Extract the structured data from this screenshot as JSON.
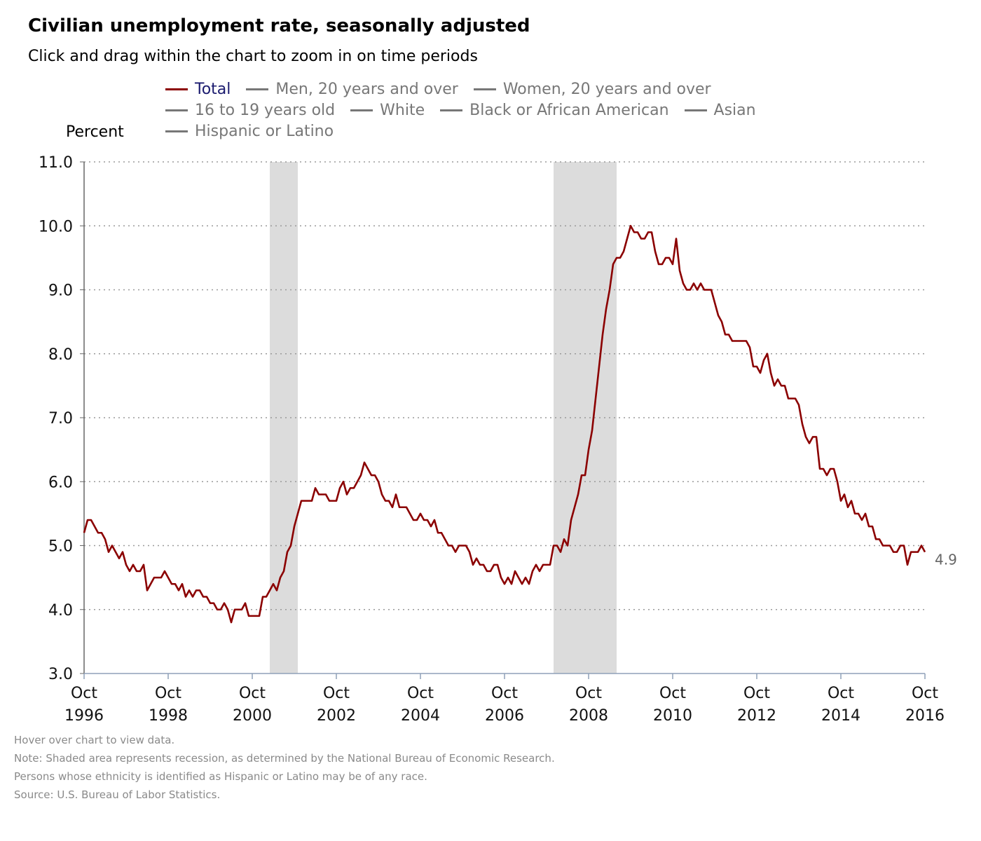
{
  "title": "Civilian unemployment rate, seasonally adjusted",
  "subtitle": "Click and drag within the chart to zoom in on time periods",
  "legend": {
    "rows": [
      [
        {
          "label": "Total",
          "active": true
        },
        {
          "label": "Men, 20 years and over",
          "active": false
        },
        {
          "label": "Women, 20 years and over",
          "active": false
        }
      ],
      [
        {
          "label": "16 to 19 years old",
          "active": false
        },
        {
          "label": "White",
          "active": false
        },
        {
          "label": "Black or African American",
          "active": false
        },
        {
          "label": "Asian",
          "active": false
        }
      ],
      [
        {
          "label": "Hispanic or Latino",
          "active": false
        }
      ]
    ]
  },
  "notes": {
    "hover": "Hover over chart to view data.",
    "recession": "Note: Shaded area represents recession, as determined by the National Bureau of Economic Research.",
    "hispanic": "Persons whose ethnicity is identified as Hispanic or Latino may be of any race.",
    "source": "Source: U.S. Bureau of Labor Statistics."
  },
  "chart_data": {
    "type": "line",
    "title": "Civilian unemployment rate, seasonally adjusted",
    "ylabel": "Percent",
    "xlabel": "",
    "ylim": [
      3.0,
      11.0
    ],
    "yticks": [
      "3.0",
      "4.0",
      "5.0",
      "6.0",
      "7.0",
      "8.0",
      "9.0",
      "10.0",
      "11.0"
    ],
    "x_start": "1996-10",
    "x_end": "2016-10",
    "xticks": [
      {
        "month": "Oct",
        "year": "1996"
      },
      {
        "month": "Oct",
        "year": "1998"
      },
      {
        "month": "Oct",
        "year": "2000"
      },
      {
        "month": "Oct",
        "year": "2002"
      },
      {
        "month": "Oct",
        "year": "2004"
      },
      {
        "month": "Oct",
        "year": "2006"
      },
      {
        "month": "Oct",
        "year": "2008"
      },
      {
        "month": "Oct",
        "year": "2010"
      },
      {
        "month": "Oct",
        "year": "2012"
      },
      {
        "month": "Oct",
        "year": "2014"
      },
      {
        "month": "Oct",
        "year": "2016"
      }
    ],
    "grid": "horizontal-dotted",
    "recessions": [
      {
        "start": "2001-03",
        "end": "2001-11"
      },
      {
        "start": "2007-12",
        "end": "2009-06"
      }
    ],
    "series": [
      {
        "name": "Total",
        "color": "#8b0000",
        "last_label": "4.9",
        "points": [
          [
            "1996-10",
            5.2
          ],
          [
            "1996-11",
            5.4
          ],
          [
            "1996-12",
            5.4
          ],
          [
            "1997-01",
            5.3
          ],
          [
            "1997-02",
            5.2
          ],
          [
            "1997-03",
            5.2
          ],
          [
            "1997-04",
            5.1
          ],
          [
            "1997-05",
            4.9
          ],
          [
            "1997-06",
            5.0
          ],
          [
            "1997-07",
            4.9
          ],
          [
            "1997-08",
            4.8
          ],
          [
            "1997-09",
            4.9
          ],
          [
            "1997-10",
            4.7
          ],
          [
            "1997-11",
            4.6
          ],
          [
            "1997-12",
            4.7
          ],
          [
            "1998-01",
            4.6
          ],
          [
            "1998-02",
            4.6
          ],
          [
            "1998-03",
            4.7
          ],
          [
            "1998-04",
            4.3
          ],
          [
            "1998-05",
            4.4
          ],
          [
            "1998-06",
            4.5
          ],
          [
            "1998-07",
            4.5
          ],
          [
            "1998-08",
            4.5
          ],
          [
            "1998-09",
            4.6
          ],
          [
            "1998-10",
            4.5
          ],
          [
            "1998-11",
            4.4
          ],
          [
            "1998-12",
            4.4
          ],
          [
            "1999-01",
            4.3
          ],
          [
            "1999-02",
            4.4
          ],
          [
            "1999-03",
            4.2
          ],
          [
            "1999-04",
            4.3
          ],
          [
            "1999-05",
            4.2
          ],
          [
            "1999-06",
            4.3
          ],
          [
            "1999-07",
            4.3
          ],
          [
            "1999-08",
            4.2
          ],
          [
            "1999-09",
            4.2
          ],
          [
            "1999-10",
            4.1
          ],
          [
            "1999-11",
            4.1
          ],
          [
            "1999-12",
            4.0
          ],
          [
            "2000-01",
            4.0
          ],
          [
            "2000-02",
            4.1
          ],
          [
            "2000-03",
            4.0
          ],
          [
            "2000-04",
            3.8
          ],
          [
            "2000-05",
            4.0
          ],
          [
            "2000-06",
            4.0
          ],
          [
            "2000-07",
            4.0
          ],
          [
            "2000-08",
            4.1
          ],
          [
            "2000-09",
            3.9
          ],
          [
            "2000-10",
            3.9
          ],
          [
            "2000-11",
            3.9
          ],
          [
            "2000-12",
            3.9
          ],
          [
            "2001-01",
            4.2
          ],
          [
            "2001-02",
            4.2
          ],
          [
            "2001-03",
            4.3
          ],
          [
            "2001-04",
            4.4
          ],
          [
            "2001-05",
            4.3
          ],
          [
            "2001-06",
            4.5
          ],
          [
            "2001-07",
            4.6
          ],
          [
            "2001-08",
            4.9
          ],
          [
            "2001-09",
            5.0
          ],
          [
            "2001-10",
            5.3
          ],
          [
            "2001-11",
            5.5
          ],
          [
            "2001-12",
            5.7
          ],
          [
            "2002-01",
            5.7
          ],
          [
            "2002-02",
            5.7
          ],
          [
            "2002-03",
            5.7
          ],
          [
            "2002-04",
            5.9
          ],
          [
            "2002-05",
            5.8
          ],
          [
            "2002-06",
            5.8
          ],
          [
            "2002-07",
            5.8
          ],
          [
            "2002-08",
            5.7
          ],
          [
            "2002-09",
            5.7
          ],
          [
            "2002-10",
            5.7
          ],
          [
            "2002-11",
            5.9
          ],
          [
            "2002-12",
            6.0
          ],
          [
            "2003-01",
            5.8
          ],
          [
            "2003-02",
            5.9
          ],
          [
            "2003-03",
            5.9
          ],
          [
            "2003-04",
            6.0
          ],
          [
            "2003-05",
            6.1
          ],
          [
            "2003-06",
            6.3
          ],
          [
            "2003-07",
            6.2
          ],
          [
            "2003-08",
            6.1
          ],
          [
            "2003-09",
            6.1
          ],
          [
            "2003-10",
            6.0
          ],
          [
            "2003-11",
            5.8
          ],
          [
            "2003-12",
            5.7
          ],
          [
            "2004-01",
            5.7
          ],
          [
            "2004-02",
            5.6
          ],
          [
            "2004-03",
            5.8
          ],
          [
            "2004-04",
            5.6
          ],
          [
            "2004-05",
            5.6
          ],
          [
            "2004-06",
            5.6
          ],
          [
            "2004-07",
            5.5
          ],
          [
            "2004-08",
            5.4
          ],
          [
            "2004-09",
            5.4
          ],
          [
            "2004-10",
            5.5
          ],
          [
            "2004-11",
            5.4
          ],
          [
            "2004-12",
            5.4
          ],
          [
            "2005-01",
            5.3
          ],
          [
            "2005-02",
            5.4
          ],
          [
            "2005-03",
            5.2
          ],
          [
            "2005-04",
            5.2
          ],
          [
            "2005-05",
            5.1
          ],
          [
            "2005-06",
            5.0
          ],
          [
            "2005-07",
            5.0
          ],
          [
            "2005-08",
            4.9
          ],
          [
            "2005-09",
            5.0
          ],
          [
            "2005-10",
            5.0
          ],
          [
            "2005-11",
            5.0
          ],
          [
            "2005-12",
            4.9
          ],
          [
            "2006-01",
            4.7
          ],
          [
            "2006-02",
            4.8
          ],
          [
            "2006-03",
            4.7
          ],
          [
            "2006-04",
            4.7
          ],
          [
            "2006-05",
            4.6
          ],
          [
            "2006-06",
            4.6
          ],
          [
            "2006-07",
            4.7
          ],
          [
            "2006-08",
            4.7
          ],
          [
            "2006-09",
            4.5
          ],
          [
            "2006-10",
            4.4
          ],
          [
            "2006-11",
            4.5
          ],
          [
            "2006-12",
            4.4
          ],
          [
            "2007-01",
            4.6
          ],
          [
            "2007-02",
            4.5
          ],
          [
            "2007-03",
            4.4
          ],
          [
            "2007-04",
            4.5
          ],
          [
            "2007-05",
            4.4
          ],
          [
            "2007-06",
            4.6
          ],
          [
            "2007-07",
            4.7
          ],
          [
            "2007-08",
            4.6
          ],
          [
            "2007-09",
            4.7
          ],
          [
            "2007-10",
            4.7
          ],
          [
            "2007-11",
            4.7
          ],
          [
            "2007-12",
            5.0
          ],
          [
            "2008-01",
            5.0
          ],
          [
            "2008-02",
            4.9
          ],
          [
            "2008-03",
            5.1
          ],
          [
            "2008-04",
            5.0
          ],
          [
            "2008-05",
            5.4
          ],
          [
            "2008-06",
            5.6
          ],
          [
            "2008-07",
            5.8
          ],
          [
            "2008-08",
            6.1
          ],
          [
            "2008-09",
            6.1
          ],
          [
            "2008-10",
            6.5
          ],
          [
            "2008-11",
            6.8
          ],
          [
            "2008-12",
            7.3
          ],
          [
            "2009-01",
            7.8
          ],
          [
            "2009-02",
            8.3
          ],
          [
            "2009-03",
            8.7
          ],
          [
            "2009-04",
            9.0
          ],
          [
            "2009-05",
            9.4
          ],
          [
            "2009-06",
            9.5
          ],
          [
            "2009-07",
            9.5
          ],
          [
            "2009-08",
            9.6
          ],
          [
            "2009-09",
            9.8
          ],
          [
            "2009-10",
            10.0
          ],
          [
            "2009-11",
            9.9
          ],
          [
            "2009-12",
            9.9
          ],
          [
            "2010-01",
            9.8
          ],
          [
            "2010-02",
            9.8
          ],
          [
            "2010-03",
            9.9
          ],
          [
            "2010-04",
            9.9
          ],
          [
            "2010-05",
            9.6
          ],
          [
            "2010-06",
            9.4
          ],
          [
            "2010-07",
            9.4
          ],
          [
            "2010-08",
            9.5
          ],
          [
            "2010-09",
            9.5
          ],
          [
            "2010-10",
            9.4
          ],
          [
            "2010-11",
            9.8
          ],
          [
            "2010-12",
            9.3
          ],
          [
            "2011-01",
            9.1
          ],
          [
            "2011-02",
            9.0
          ],
          [
            "2011-03",
            9.0
          ],
          [
            "2011-04",
            9.1
          ],
          [
            "2011-05",
            9.0
          ],
          [
            "2011-06",
            9.1
          ],
          [
            "2011-07",
            9.0
          ],
          [
            "2011-08",
            9.0
          ],
          [
            "2011-09",
            9.0
          ],
          [
            "2011-10",
            8.8
          ],
          [
            "2011-11",
            8.6
          ],
          [
            "2011-12",
            8.5
          ],
          [
            "2012-01",
            8.3
          ],
          [
            "2012-02",
            8.3
          ],
          [
            "2012-03",
            8.2
          ],
          [
            "2012-04",
            8.2
          ],
          [
            "2012-05",
            8.2
          ],
          [
            "2012-06",
            8.2
          ],
          [
            "2012-07",
            8.2
          ],
          [
            "2012-08",
            8.1
          ],
          [
            "2012-09",
            7.8
          ],
          [
            "2012-10",
            7.8
          ],
          [
            "2012-11",
            7.7
          ],
          [
            "2012-12",
            7.9
          ],
          [
            "2013-01",
            8.0
          ],
          [
            "2013-02",
            7.7
          ],
          [
            "2013-03",
            7.5
          ],
          [
            "2013-04",
            7.6
          ],
          [
            "2013-05",
            7.5
          ],
          [
            "2013-06",
            7.5
          ],
          [
            "2013-07",
            7.3
          ],
          [
            "2013-08",
            7.3
          ],
          [
            "2013-09",
            7.3
          ],
          [
            "2013-10",
            7.2
          ],
          [
            "2013-11",
            6.9
          ],
          [
            "2013-12",
            6.7
          ],
          [
            "2014-01",
            6.6
          ],
          [
            "2014-02",
            6.7
          ],
          [
            "2014-03",
            6.7
          ],
          [
            "2014-04",
            6.2
          ],
          [
            "2014-05",
            6.2
          ],
          [
            "2014-06",
            6.1
          ],
          [
            "2014-07",
            6.2
          ],
          [
            "2014-08",
            6.2
          ],
          [
            "2014-09",
            6.0
          ],
          [
            "2014-10",
            5.7
          ],
          [
            "2014-11",
            5.8
          ],
          [
            "2014-12",
            5.6
          ],
          [
            "2015-01",
            5.7
          ],
          [
            "2015-02",
            5.5
          ],
          [
            "2015-03",
            5.5
          ],
          [
            "2015-04",
            5.4
          ],
          [
            "2015-05",
            5.5
          ],
          [
            "2015-06",
            5.3
          ],
          [
            "2015-07",
            5.3
          ],
          [
            "2015-08",
            5.1
          ],
          [
            "2015-09",
            5.1
          ],
          [
            "2015-10",
            5.0
          ],
          [
            "2015-11",
            5.0
          ],
          [
            "2015-12",
            5.0
          ],
          [
            "2016-01",
            4.9
          ],
          [
            "2016-02",
            4.9
          ],
          [
            "2016-03",
            5.0
          ],
          [
            "2016-04",
            5.0
          ],
          [
            "2016-05",
            4.7
          ],
          [
            "2016-06",
            4.9
          ],
          [
            "2016-07",
            4.9
          ],
          [
            "2016-08",
            4.9
          ],
          [
            "2016-09",
            5.0
          ],
          [
            "2016-10",
            4.9
          ]
        ]
      }
    ]
  }
}
